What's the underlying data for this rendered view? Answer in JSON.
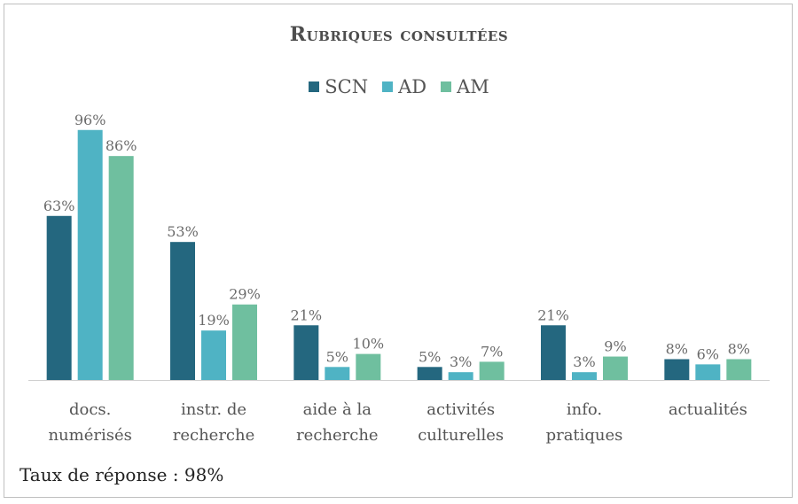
{
  "chart_data": {
    "type": "bar",
    "title": "Rubriques consultées",
    "categories": [
      [
        "docs.",
        "numérisés"
      ],
      [
        "instr. de",
        "recherche"
      ],
      [
        "aide à la",
        "recherche"
      ],
      [
        "activités",
        "culturelles"
      ],
      [
        "info.",
        "pratiques"
      ],
      [
        "actualités"
      ]
    ],
    "series": [
      {
        "name": "SCN",
        "color": "#24677f",
        "values": [
          63,
          53,
          21,
          5,
          21,
          8
        ]
      },
      {
        "name": "AD",
        "color": "#4fb3c4",
        "values": [
          96,
          19,
          5,
          3,
          3,
          6
        ]
      },
      {
        "name": "AM",
        "color": "#6fbf9f",
        "values": [
          86,
          29,
          10,
          7,
          9,
          8
        ]
      }
    ],
    "value_suffix": "%",
    "ylim": [
      0,
      100
    ],
    "grid": false,
    "legend_position": "top"
  },
  "footer": "Taux de réponse : 98%"
}
